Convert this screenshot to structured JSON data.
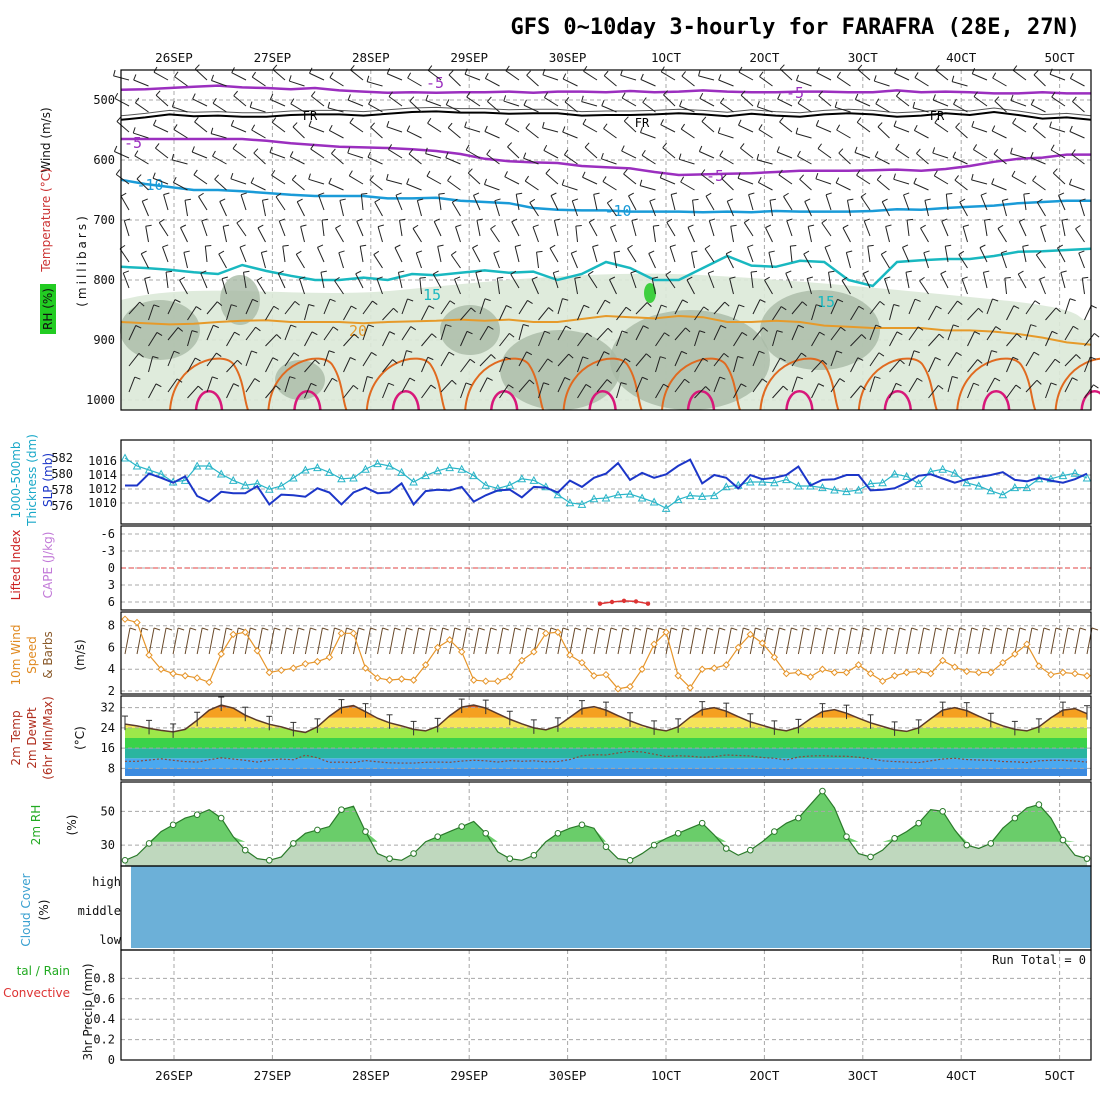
{
  "chart_data": {
    "type": "line",
    "title": "GFS 0~10day 3-hourly for FARAFRA (28E, 27N)",
    "x_dates": [
      "26SEP",
      "27SEP",
      "28SEP",
      "29SEP",
      "30SEP",
      "1OCT",
      "2OCT",
      "3OCT",
      "4OCT",
      "5OCT"
    ],
    "labels": {
      "wind": "Wind (m/s)",
      "temperature": "Temperature (°C)",
      "rh": "RH (%)",
      "pressure_axis": "(millibars)",
      "thickness1": "1000-500mb",
      "thickness2": "Thickness (dm)",
      "slp": "SLP (mb)",
      "lifted_index": "Lifted Index",
      "cape": "CAPE (J/kg)",
      "wind10m_1": "10m Wind",
      "wind10m_2": "Speed",
      "wind10m_3": "& Barbs",
      "wind10m_unit": "(m/s)",
      "temp2m_1": "2m Temp",
      "temp2m_2": "2m DewPt",
      "temp2m_3": "(6hr Min/Max)",
      "temp2m_unit": "(°C)",
      "rh2m": "2m RH",
      "rh2m_unit": "(%)",
      "cloud": "Cloud Cover",
      "cloud_unit": "(%)",
      "precip_total": "tal / Rain",
      "precip_convective": "Convective",
      "precip_unit": "3hr Precip (mm)",
      "run_total": "Run Total = 0"
    },
    "upper_air": {
      "pressure_ticks": [
        "500",
        "600",
        "700",
        "800",
        "900",
        "1000"
      ],
      "temp_contour_labels": [
        "-5",
        "-5",
        "-5",
        "FR",
        "FR",
        "FR",
        "-10",
        "-10",
        "-10",
        "15",
        "15",
        "20",
        "30",
        "30",
        "30",
        "50"
      ],
      "isotherm_levels": {
        "minus5_upper": [
          483,
          482,
          480,
          478,
          476,
          479,
          480,
          482,
          480,
          484,
          486,
          488,
          487,
          488,
          487,
          487,
          486,
          488,
          486,
          486,
          487,
          485,
          487,
          486,
          484,
          486,
          487,
          487,
          486,
          486,
          487,
          487,
          484,
          487,
          486,
          487,
          489,
          489,
          487,
          489,
          489
        ],
        "freezing": [
          533,
          529,
          524,
          527,
          526,
          528,
          528,
          525,
          524,
          524,
          526,
          523,
          520,
          519,
          521,
          521,
          523,
          522,
          522,
          526,
          525,
          525,
          524,
          522,
          524,
          527,
          523,
          526,
          528,
          524,
          522,
          524,
          528,
          526,
          522,
          525,
          520,
          525,
          531,
          529,
          533
        ],
        "minus5_lower": [
          565,
          565,
          565,
          565,
          565,
          565,
          568,
          572,
          575,
          578,
          579,
          580,
          582,
          585,
          590,
          598,
          602,
          604,
          605,
          610,
          612,
          614,
          620,
          625,
          624,
          623,
          622,
          620,
          618,
          618,
          618,
          617,
          616,
          618,
          615,
          610,
          603,
          598,
          596,
          591,
          591
        ],
        "minus10": [
          633,
          640,
          645,
          650,
          650,
          652,
          655,
          658,
          660,
          660,
          660,
          664,
          664,
          663,
          668,
          670,
          672,
          680,
          683,
          684,
          684,
          686,
          686,
          686,
          687,
          686,
          687,
          685,
          686,
          686,
          686,
          685,
          682,
          683,
          680,
          678,
          676,
          672,
          670,
          668,
          668
        ],
        "plus15": [
          778,
          780,
          783,
          787,
          790,
          775,
          785,
          793,
          800,
          800,
          796,
          800,
          790,
          792,
          788,
          784,
          788,
          786,
          800,
          790,
          770,
          780,
          800,
          800,
          780,
          760,
          776,
          778,
          768,
          770,
          800,
          810,
          770,
          767,
          765,
          765,
          760,
          753,
          752,
          750,
          748
        ],
        "plus20": [
          870,
          872,
          874,
          873,
          870,
          868,
          867,
          870,
          870,
          870,
          872,
          870,
          869,
          868,
          866,
          868,
          866,
          870,
          870,
          865,
          860,
          862,
          864,
          860,
          862,
          870,
          870,
          868,
          870,
          876,
          878,
          880,
          880,
          880,
          884,
          884,
          886,
          890,
          896,
          904,
          908
        ]
      }
    },
    "slp_mb": [
      1012.5,
      1012.5,
      1014.2,
      1013.6,
      1012.9,
      1013.8,
      1011.0,
      1010.2,
      1011.6,
      1011.4,
      1011.4,
      1012.4,
      1009.8,
      1011.2,
      1011.1,
      1010.9,
      1012.1,
      1011.5,
      1009.8,
      1011.5,
      1012.2,
      1011.4,
      1011.5,
      1012.8,
      1009.8,
      1011.7,
      1011.9,
      1011.8,
      1012.3,
      1010.2,
      1011.1,
      1011.8,
      1011.9,
      1010.8,
      1012.3,
      1012.2,
      1011.5,
      1013.2,
      1012.3,
      1013.6,
      1014.2,
      1015.7,
      1013.3,
      1014.3,
      1013.6,
      1014.1,
      1015.3,
      1016.2,
      1012.8,
      1014.0,
      1013.6,
      1012.1,
      1014.0,
      1013.4,
      1013.6,
      1014.0,
      1015.2,
      1012.5,
      1013.3,
      1013.4,
      1014.0,
      1014.0,
      1011.8,
      1011.9,
      1012.1,
      1012.9,
      1013.9,
      1014.1,
      1013.5,
      1012.9,
      1013.4,
      1013.7,
      1014.0,
      1014.4,
      1013.3,
      1013.1,
      1013.6,
      1013.2,
      1012.9,
      1013.4,
      1014.2
    ],
    "thickness_dm": [
      582,
      581,
      580.5,
      580,
      579,
      579.2,
      581,
      581,
      580,
      579.2,
      578.6,
      578.8,
      578.1,
      578.5,
      579.5,
      580.5,
      580.8,
      580.2,
      579.4,
      579.5,
      580.6,
      581.3,
      581.0,
      580.2,
      579.0,
      579.8,
      580.4,
      580.8,
      580.6,
      579.8,
      578.6,
      578.2,
      578.6,
      579.4,
      579.2,
      578.4,
      577.4,
      576.4,
      576.2,
      576.9,
      577.0,
      577.4,
      577.5,
      577.0,
      576.5,
      575.7,
      576.8,
      577.3,
      577.2,
      577.3,
      578.4,
      578.6,
      579.0,
      579.0,
      578.9,
      579.3,
      578.5,
      578.5,
      578.3,
      578.0,
      577.8,
      578.0,
      578.8,
      578.9,
      580.0,
      579.7,
      578.8,
      580.3,
      580.6,
      580.1,
      578.9,
      578.5,
      577.9,
      577.4,
      578.3,
      578.3,
      579.4,
      579.4,
      579.8,
      580.1,
      579.5
    ],
    "lifted_index": {
      "ticks": [
        "-6",
        "-3",
        "0",
        "3",
        "6"
      ],
      "zero_line": 0
    },
    "cape_jkg": [
      0,
      0,
      0,
      0,
      0,
      0,
      0,
      0,
      0,
      0,
      0,
      0,
      0,
      0,
      0,
      0,
      0,
      0,
      0,
      0,
      0,
      0,
      0,
      0,
      0,
      0,
      0,
      0,
      0,
      0,
      0,
      0,
      0,
      0,
      0,
      0,
      0,
      0,
      0,
      0,
      0
    ],
    "lifted_index_values": [
      8,
      8,
      8,
      8,
      8,
      8,
      8,
      8,
      8,
      8,
      8,
      8,
      8,
      8,
      8,
      8,
      8,
      8,
      8,
      8,
      8,
      8,
      8,
      8,
      8,
      8,
      8,
      8,
      8,
      8,
      8,
      8,
      8,
      8,
      8,
      8,
      8,
      8,
      8,
      8,
      8,
      8,
      8,
      8,
      8,
      8,
      8,
      8,
      8,
      8,
      8,
      8,
      8,
      8,
      8,
      8,
      8,
      8,
      8,
      8,
      8,
      8,
      8,
      8,
      8,
      8,
      8,
      8,
      8,
      8,
      8,
      8,
      8,
      8,
      8,
      8,
      8,
      8,
      8,
      8,
      8
    ],
    "li_near_zero_cluster": [
      6.3,
      6.0,
      5.8,
      5.9,
      6.3
    ],
    "wind10m_ms": [
      8.6,
      8.3,
      5.3,
      4.0,
      3.6,
      3.4,
      3.2,
      2.8,
      5.4,
      7.2,
      7.4,
      5.7,
      3.7,
      3.9,
      4.1,
      4.5,
      4.7,
      5.1,
      7.3,
      7.3,
      4.1,
      3.2,
      3.0,
      3.1,
      3.0,
      4.4,
      6.0,
      6.7,
      5.6,
      3.0,
      2.9,
      2.9,
      3.3,
      4.8,
      5.6,
      7.3,
      7.4,
      5.3,
      4.6,
      3.4,
      3.5,
      2.2,
      2.4,
      4.0,
      6.3,
      7.4,
      3.4,
      2.3,
      4.0,
      4.1,
      4.4,
      6.0,
      7.2,
      6.4,
      5.1,
      3.6,
      3.7,
      3.3,
      4.0,
      3.7,
      3.7,
      4.4,
      3.6,
      2.9,
      3.4,
      3.7,
      3.8,
      3.6,
      4.8,
      4.2,
      3.8,
      3.7,
      3.7,
      4.6,
      5.4,
      6.3,
      4.3,
      3.5,
      3.7,
      3.6,
      3.4
    ],
    "wind10m_ticks": [
      "2",
      "4",
      "6",
      "8"
    ],
    "temp2m": {
      "ticks": [
        "8",
        "16",
        "24",
        "32"
      ],
      "temp": [
        25.5,
        24.8,
        23.8,
        23.0,
        22.4,
        23.4,
        27.0,
        31.0,
        33.0,
        31.8,
        29.0,
        27.0,
        25.4,
        24.4,
        23.0,
        22.2,
        24.4,
        28.6,
        32.0,
        32.8,
        30.4,
        27.8,
        26.0,
        24.8,
        23.4,
        22.8,
        24.6,
        28.8,
        32.2,
        33.0,
        31.8,
        29.6,
        27.4,
        25.6,
        24.0,
        23.2,
        24.8,
        28.2,
        31.6,
        32.4,
        31.0,
        28.8,
        26.8,
        25.0,
        23.6,
        22.8,
        24.4,
        28.2,
        31.2,
        32.0,
        30.6,
        28.4,
        26.4,
        25.0,
        23.6,
        22.8,
        24.2,
        27.6,
        30.4,
        31.2,
        29.8,
        27.8,
        26.0,
        24.6,
        23.2,
        22.6,
        24.0,
        27.6,
        31.0,
        32.0,
        30.8,
        28.6,
        26.6,
        24.8,
        23.4,
        22.8,
        24.4,
        28.0,
        31.0,
        31.6,
        29.6
      ],
      "dewpoint": [
        10.8,
        10.8,
        11.3,
        11.8,
        11.2,
        10.7,
        10.5,
        11.4,
        12.2,
        11.7,
        11.2,
        10.5,
        11.3,
        11.7,
        11.4,
        13.2,
        12.2,
        10.4,
        10.5,
        10.3,
        11.1,
        10.6,
        10.2,
        10.1,
        10.1,
        10.4,
        10.5,
        10.4,
        10.9,
        11.2,
        11.0,
        10.5,
        11.1,
        10.8,
        11.0,
        10.6,
        10.7,
        11.5,
        13.0,
        13.4,
        13.3,
        14.1,
        14.7,
        14.5,
        13.6,
        12.7,
        13.0,
        12.8,
        12.4,
        12.6,
        13.3,
        13.1,
        12.9,
        12.3,
        12.0,
        11.3,
        12.5,
        12.9,
        13.0,
        12.8,
        12.8,
        12.4,
        11.8,
        11.0,
        10.7,
        10.5,
        10.3,
        11.0,
        11.7,
        12.0,
        11.5,
        11.3,
        11.2,
        10.7,
        10.6,
        10.3,
        11.0,
        11.2,
        11.2,
        10.9,
        10.5
      ]
    },
    "rh2m": {
      "ticks": [
        "30",
        "50"
      ],
      "values": [
        21,
        24,
        31,
        38,
        42,
        46,
        48,
        51,
        46,
        35,
        27,
        22,
        21,
        23,
        31,
        37,
        39,
        41,
        51,
        53,
        38,
        25,
        22,
        21,
        25,
        32,
        35,
        38,
        41,
        44,
        37,
        26,
        22,
        21,
        24,
        32,
        37,
        40,
        42,
        40,
        29,
        22,
        21,
        25,
        30,
        34,
        37,
        40,
        43,
        36,
        28,
        24,
        27,
        32,
        38,
        43,
        46,
        54,
        62,
        52,
        35,
        25,
        23,
        27,
        34,
        38,
        43,
        51,
        50,
        39,
        30,
        28,
        31,
        40,
        46,
        52,
        54,
        46,
        33,
        24,
        22
      ],
      "values2": [
        21,
        24,
        31,
        38,
        42,
        46,
        48,
        51,
        46,
        35,
        27,
        22,
        21,
        23,
        31,
        37,
        39,
        41,
        51,
        53,
        38,
        25,
        22,
        21,
        25,
        32,
        35,
        38,
        41,
        44,
        37,
        26,
        22,
        21,
        24,
        32,
        37,
        40,
        42,
        40,
        29,
        22,
        21,
        25,
        30,
        34,
        37,
        40,
        43,
        36,
        28,
        24,
        27,
        32,
        38,
        43,
        46,
        54,
        62,
        52,
        35,
        25,
        23,
        27,
        34,
        38,
        43,
        51,
        50,
        39,
        30,
        28,
        31,
        40,
        46,
        52,
        54,
        46,
        33,
        24,
        22
      ]
    },
    "cloud_cover": {
      "levels": [
        "high",
        "middle",
        "low"
      ],
      "fill_color": "#6cb0d8"
    },
    "precip": {
      "ticks": [
        "0",
        "0.2",
        "0.4",
        "0.6",
        "0.8"
      ],
      "ymax": 1.0,
      "total_mm": 0
    },
    "colors": {
      "minus5": "#9b2fbf",
      "freezing": "#000000",
      "minus10": "#1a9bd8",
      "plus15": "#19b8c0",
      "plus20": "#e69a2a",
      "plus25": "#e06a20",
      "plus30": "#d8187a",
      "slp": "#1c36c8",
      "thickness": "#2ab5c8",
      "wind10m": "#e6952a",
      "rh_fill": "#6acd6a"
    }
  }
}
